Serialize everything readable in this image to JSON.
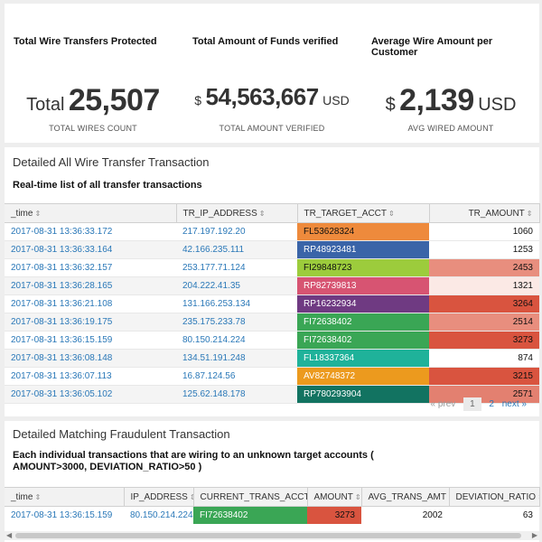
{
  "kpis": [
    {
      "title": "Total Wire Transfers Protected",
      "prefix": "Total",
      "value": "25,507",
      "suffix": "",
      "sublabel": "TOTAL WIRES COUNT"
    },
    {
      "title": "Total Amount of Funds verified",
      "prefix": "$",
      "value": "54,563,667",
      "suffix": "USD",
      "sublabel": "TOTAL AMOUNT VERIFIED"
    },
    {
      "title": "Average Wire Amount per Customer",
      "prefix": "$",
      "value": "2,139",
      "suffix": "USD",
      "sublabel": "AVG WIRED AMOUNT"
    }
  ],
  "detail": {
    "title": "Detailed All Wire Transfer Transaction",
    "description": "Real-time list of all transfer transactions",
    "columns": [
      "_time",
      "TR_IP_ADDRESS",
      "TR_TARGET_ACCT",
      "TR_AMOUNT"
    ],
    "rows": [
      {
        "time": "2017-08-31 13:36:33.172",
        "ip": "217.197.192.20",
        "acct": "FL53628324",
        "acct_color": "#ee8a3c",
        "amount": "1060",
        "amount_color": "#ffffff"
      },
      {
        "time": "2017-08-31 13:36:33.164",
        "ip": "42.166.235.111",
        "acct": "RP48923481",
        "acct_color": "#3a64a8",
        "amount": "1253",
        "amount_color": "#ffffff"
      },
      {
        "time": "2017-08-31 13:36:32.157",
        "ip": "253.177.71.124",
        "acct": "FI29848723",
        "acct_color": "#9ccc3c",
        "amount": "2453",
        "amount_color": "#e88e7e"
      },
      {
        "time": "2017-08-31 13:36:28.165",
        "ip": "204.222.41.35",
        "acct": "RP82739813",
        "acct_color": "#d75472",
        "amount": "1321",
        "amount_color": "#fbe9e5"
      },
      {
        "time": "2017-08-31 13:36:21.108",
        "ip": "131.166.253.134",
        "acct": "RP16232934",
        "acct_color": "#6f3a82",
        "amount": "3264",
        "amount_color": "#d9543f"
      },
      {
        "time": "2017-08-31 13:36:19.175",
        "ip": "235.175.233.78",
        "acct": "FI72638402",
        "acct_color": "#3aa655",
        "amount": "2514",
        "amount_color": "#e88e7e"
      },
      {
        "time": "2017-08-31 13:36:15.159",
        "ip": "80.150.214.224",
        "acct": "FI72638402",
        "acct_color": "#3aa655",
        "amount": "3273",
        "amount_color": "#d9543f"
      },
      {
        "time": "2017-08-31 13:36:08.148",
        "ip": "134.51.191.248",
        "acct": "FL18337364",
        "acct_color": "#1fb29a",
        "amount": "874",
        "amount_color": "#ffffff"
      },
      {
        "time": "2017-08-31 13:36:07.113",
        "ip": "16.87.124.56",
        "acct": "AV82748372",
        "acct_color": "#ec9a1e",
        "amount": "3215",
        "amount_color": "#d9543f"
      },
      {
        "time": "2017-08-31 13:36:05.102",
        "ip": "125.62.148.178",
        "acct": "RP780293904",
        "acct_color": "#127361",
        "amount": "2571",
        "amount_color": "#e38070"
      }
    ],
    "pager": {
      "prev": "« prev",
      "current": "1",
      "next_page": "2",
      "next": "next »"
    }
  },
  "fraud": {
    "title": "Detailed Matching Fraudulent Transaction",
    "description": "Each individual transactions that are wiring to an unknown target accounts ( AMOUNT>3000, DEVIATION_RATIO>50 )",
    "columns": [
      "_time",
      "IP_ADDRESS",
      "CURRENT_TRANS_ACCT",
      "AMOUNT",
      "AVG_TRANS_AMT",
      "DEVIATION_RATIO"
    ],
    "rows": [
      {
        "time": "2017-08-31 13:36:15.159",
        "ip": "80.150.214.224",
        "acct": "FI72638402",
        "acct_color": "#3aa655",
        "amount": "3273",
        "amount_color": "#d9543f",
        "avg": "2002",
        "ratio": "63"
      }
    ]
  }
}
